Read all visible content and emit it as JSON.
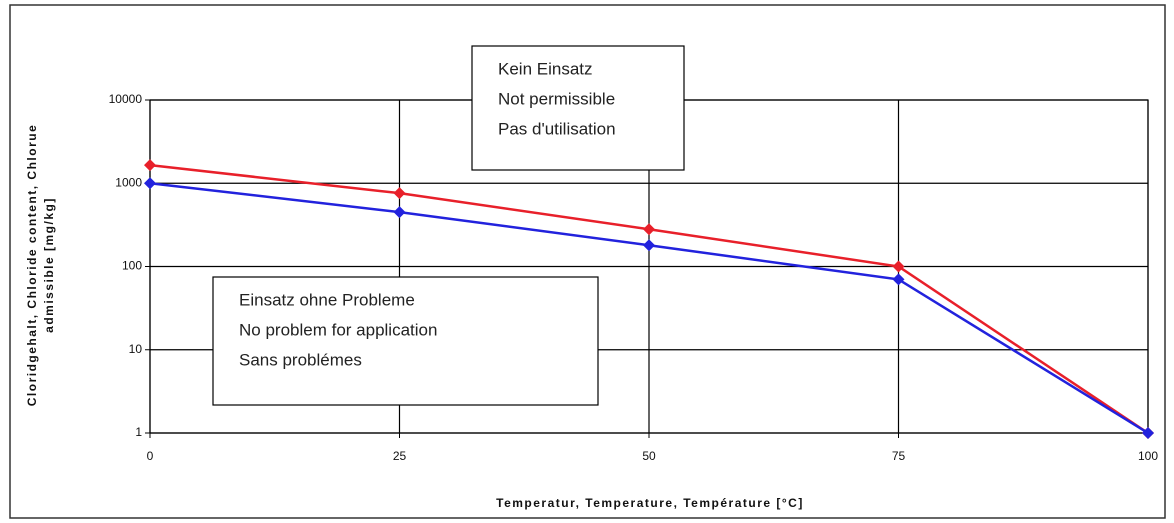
{
  "chart_data": {
    "type": "line",
    "xlabel": "Temperatur, Temperature, Température [°C]",
    "ylabel": [
      "Cloridgehalt, Chloride content, Chlorue",
      "admissible [mg/kg]"
    ],
    "x": [
      0,
      25,
      50,
      75,
      100
    ],
    "series": [
      {
        "color": "#e8202a",
        "values": [
          1650,
          760,
          280,
          100,
          1
        ]
      },
      {
        "color": "#2222dd",
        "values": [
          1000,
          450,
          180,
          70,
          1
        ]
      }
    ],
    "xlim": [
      0,
      100
    ],
    "xticks": [
      0,
      25,
      50,
      75,
      100
    ],
    "ylim": [
      1,
      10000
    ],
    "yticks": [
      1,
      10,
      100,
      1000,
      10000
    ],
    "log_y": true,
    "grid": true,
    "annotations": [
      [
        "Kein Einsatz",
        "Not permissible",
        "Pas d'utilisation"
      ],
      [
        "Einsatz ohne Probleme",
        "No problem for application",
        "Sans problémes"
      ]
    ]
  }
}
